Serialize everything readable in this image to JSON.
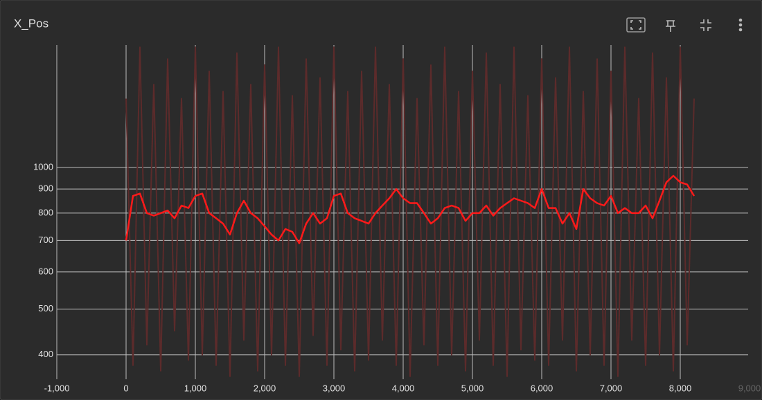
{
  "chart_data": {
    "type": "line",
    "title": "X_Pos",
    "log_y": true,
    "grid": true,
    "x": [
      0,
      100,
      200,
      300,
      400,
      500,
      600,
      700,
      800,
      900,
      1000,
      1100,
      1200,
      1300,
      1400,
      1500,
      1600,
      1700,
      1800,
      1900,
      2000,
      2100,
      2200,
      2300,
      2400,
      2500,
      2600,
      2700,
      2800,
      2900,
      3000,
      3100,
      3200,
      3300,
      3400,
      3500,
      3600,
      3700,
      3800,
      3900,
      4000,
      4100,
      4200,
      4300,
      4400,
      4500,
      4600,
      4700,
      4800,
      4900,
      5000,
      5100,
      5200,
      5300,
      5400,
      5500,
      5600,
      5700,
      5800,
      5900,
      6000,
      6100,
      6200,
      6300,
      6400,
      6500,
      6600,
      6700,
      6800,
      6900,
      7000,
      7100,
      7200,
      7300,
      7400,
      7500,
      7600,
      7700,
      7800,
      7900,
      8000,
      8100,
      8200
    ],
    "series": [
      {
        "color": "#5c2b2b",
        "values": [
          1400,
          380,
          1800,
          420,
          1500,
          370,
          1700,
          450,
          1400,
          390,
          1800,
          400,
          1600,
          380,
          1450,
          360,
          1750,
          430,
          1500,
          370,
          1650,
          400,
          1800,
          380,
          1420,
          360,
          1700,
          440,
          1550,
          380,
          1800,
          410,
          1450,
          370,
          1600,
          390,
          1800,
          430,
          1500,
          380,
          1700,
          360,
          1400,
          420,
          1650,
          380,
          1800,
          400,
          1450,
          370,
          1600,
          430,
          1750,
          380,
          1500,
          360,
          1800,
          410,
          1420,
          390,
          1700,
          380,
          1550,
          430,
          1800,
          370,
          1450,
          400,
          1700,
          380,
          1600,
          360,
          1800,
          430,
          1400,
          380,
          1750,
          400,
          1550,
          370,
          1800,
          420,
          1400
        ]
      },
      {
        "color": "#ff1a1a",
        "values": [
          700,
          870,
          880,
          800,
          790,
          800,
          810,
          780,
          830,
          820,
          870,
          880,
          800,
          780,
          760,
          720,
          800,
          850,
          800,
          780,
          750,
          720,
          700,
          740,
          730,
          690,
          760,
          800,
          760,
          780,
          870,
          880,
          800,
          780,
          770,
          760,
          800,
          830,
          860,
          900,
          860,
          840,
          840,
          800,
          760,
          780,
          820,
          830,
          820,
          770,
          800,
          800,
          830,
          790,
          820,
          840,
          860,
          850,
          840,
          820,
          900,
          820,
          820,
          760,
          800,
          740,
          900,
          860,
          840,
          830,
          870,
          800,
          820,
          800,
          800,
          830,
          780,
          850,
          930,
          960,
          930,
          920,
          870
        ]
      }
    ],
    "xlim": [
      -1000,
      9000
    ],
    "xticks": [
      {
        "value": -1000,
        "label": "-1,000"
      },
      0,
      {
        "value": 1000,
        "label": "1,000"
      },
      {
        "value": 2000,
        "label": "2,000"
      },
      {
        "value": 3000,
        "label": "3,000"
      },
      {
        "value": 4000,
        "label": "4,000"
      },
      {
        "value": 5000,
        "label": "5,000"
      },
      {
        "value": 6000,
        "label": "6,000"
      },
      {
        "value": 7000,
        "label": "7,000"
      },
      {
        "value": 8000,
        "label": "8,000"
      },
      {
        "value": 9000,
        "label": "9,000"
      }
    ],
    "ylim": [
      355,
      1820
    ],
    "yticks": [
      400,
      500,
      600,
      700,
      800,
      900,
      1000
    ]
  }
}
